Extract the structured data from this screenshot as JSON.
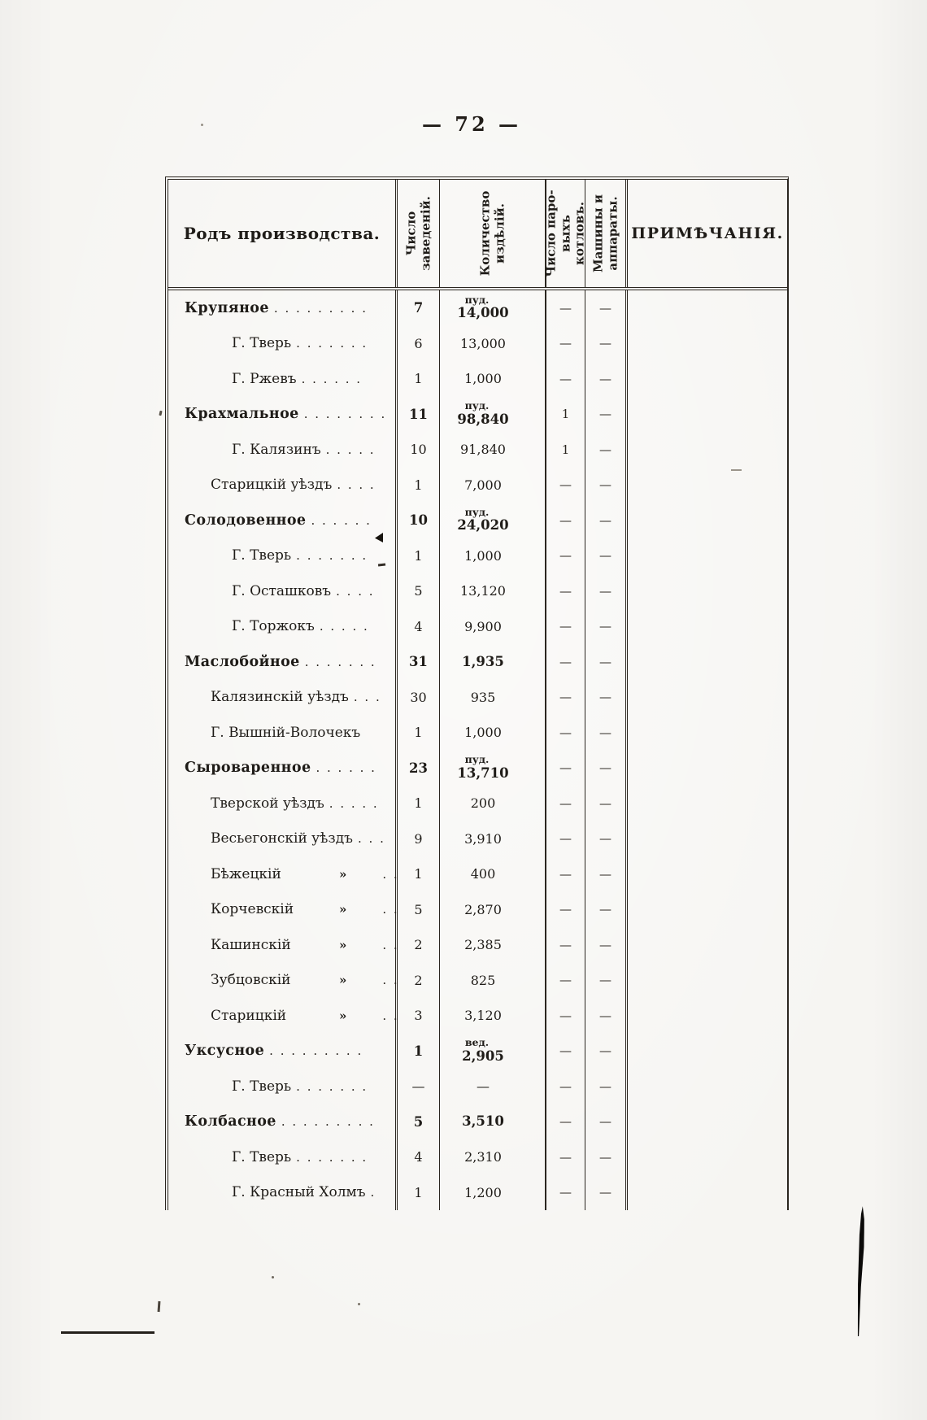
{
  "page": {
    "number": "— 72 —"
  },
  "colors": {
    "paper": "#f6f5f2",
    "ink": "#1f1c18",
    "rule": "#2b2620"
  },
  "table": {
    "header": {
      "col1": "Родъ производства.",
      "col2": "Число\nзаведеній.",
      "col3": "Количество\nиздѣлій.",
      "col4": "Число паро-\nвыхъ котловъ.",
      "col5": "Машины и\nаппараты.",
      "col6": "ПРИМѢЧАНІЯ."
    },
    "rows": [
      {
        "name": "Крупяное",
        "dots": ". . . . . . . . .",
        "indent": 0,
        "bold": true,
        "unit": "пуд.",
        "count": "7",
        "qty": "14,000",
        "boilers": "—",
        "machines": "—",
        "note": ""
      },
      {
        "name": "Г. Тверь",
        "dots": ". . . . . . .",
        "indent": 2,
        "bold": false,
        "unit": "",
        "count": "6",
        "qty": "13,000",
        "boilers": "—",
        "machines": "—",
        "note": ""
      },
      {
        "name": "Г. Ржевъ",
        "dots": " . . . . . .",
        "indent": 2,
        "bold": false,
        "unit": "",
        "count": "1",
        "qty": "1,000",
        "boilers": "—",
        "machines": "—",
        "note": ""
      },
      {
        "name": "Крахмальное",
        "dots": ". . . . . . . .",
        "indent": 0,
        "bold": true,
        "unit": "пуд.",
        "count": "11",
        "qty": "98,840",
        "boilers": "1",
        "machines": "—",
        "note": ""
      },
      {
        "name": "Г. Калязинъ",
        "dots": ". . . . .",
        "indent": 2,
        "bold": false,
        "unit": "",
        "count": "10",
        "qty": "91,840",
        "boilers": "1",
        "machines": "—",
        "note": ""
      },
      {
        "name": "Старицкій уѣздъ",
        "dots": " . . . .",
        "indent": 1,
        "bold": false,
        "unit": "",
        "count": "1",
        "qty": "7,000",
        "boilers": "—",
        "machines": "—",
        "note": ""
      },
      {
        "name": "Солодовенное",
        "dots": " . . . . . .",
        "indent": 0,
        "bold": true,
        "unit": "пуд.",
        "count": "10",
        "qty": "24,020",
        "boilers": "—",
        "machines": "—",
        "note": ""
      },
      {
        "name": "Г. Тверь",
        "dots": ". . . . . . .",
        "indent": 2,
        "bold": false,
        "unit": "",
        "count": "1",
        "qty": "1,000",
        "boilers": "—",
        "machines": "—",
        "note": ""
      },
      {
        "name": "Г. Осташковъ",
        "dots": " . . . .",
        "indent": 2,
        "bold": false,
        "unit": "",
        "count": "5",
        "qty": "13,120",
        "boilers": "—",
        "machines": "—",
        "note": ""
      },
      {
        "name": "Г. Торжокъ",
        "dots": " . . . . .",
        "indent": 2,
        "bold": false,
        "unit": "",
        "count": "4",
        "qty": "9,900",
        "boilers": "—",
        "machines": "—",
        "note": ""
      },
      {
        "name": "Маслобойное",
        "dots": ". . . . . . .",
        "indent": 0,
        "bold": true,
        "unit": "",
        "count": "31",
        "qty": "1,935",
        "boilers": "—",
        "machines": "—",
        "note": ""
      },
      {
        "name": "Калязинскій уѣздъ",
        "dots": ". . .",
        "indent": 1,
        "bold": false,
        "unit": "",
        "count": "30",
        "qty": "935",
        "boilers": "—",
        "machines": "—",
        "note": ""
      },
      {
        "name": "Г. Вышній-Волочекъ",
        "dots": "",
        "indent": 1,
        "bold": false,
        "unit": "",
        "count": "1",
        "qty": "1,000",
        "boilers": "—",
        "machines": "—",
        "note": ""
      },
      {
        "name": "Сыроваренное",
        "dots": " . . . . . .",
        "indent": 0,
        "bold": true,
        "unit": "пуд.",
        "count": "23",
        "qty": "13,710",
        "boilers": "—",
        "machines": "—",
        "note": ""
      },
      {
        "name": "Тверской уѣздъ",
        "dots": ". . . . .",
        "indent": 1,
        "bold": false,
        "unit": "",
        "count": "1",
        "qty": "200",
        "boilers": "—",
        "machines": "—",
        "note": ""
      },
      {
        "name": "Весьегонскій уѣздъ",
        "dots": ". . .",
        "indent": 1,
        "bold": false,
        "unit": "",
        "count": "9",
        "qty": "3,910",
        "boilers": "—",
        "machines": "—",
        "note": ""
      },
      {
        "name": "Бѣжецкій",
        "ditto": "»",
        "dots": ". .",
        "indent": 1,
        "bold": false,
        "unit": "",
        "count": "1",
        "qty": "400",
        "boilers": "—",
        "machines": "—",
        "note": ""
      },
      {
        "name": "Корчевскій",
        "ditto": "»",
        "dots": ". .",
        "indent": 1,
        "bold": false,
        "unit": "",
        "count": "5",
        "qty": "2,870",
        "boilers": "—",
        "machines": "—",
        "note": ""
      },
      {
        "name": "Кашинскій",
        "ditto": "»",
        "dots": ". .",
        "indent": 1,
        "bold": false,
        "unit": "",
        "count": "2",
        "qty": "2,385",
        "boilers": "—",
        "machines": "—",
        "note": ""
      },
      {
        "name": "Зубцовскій",
        "ditto": "»",
        "dots": ". .",
        "indent": 1,
        "bold": false,
        "unit": "",
        "count": "2",
        "qty": "825",
        "boilers": "—",
        "machines": "—",
        "note": ""
      },
      {
        "name": "Старицкій",
        "ditto": "»",
        "dots": ". .",
        "indent": 1,
        "bold": false,
        "unit": "",
        "count": "3",
        "qty": "3,120",
        "boilers": "—",
        "machines": "—",
        "note": ""
      },
      {
        "name": "Уксусное",
        "dots": " . . . . . . . . .",
        "indent": 0,
        "bold": true,
        "unit": "вед.",
        "count": "1",
        "qty": "2,905",
        "boilers": "—",
        "machines": "—",
        "note": ""
      },
      {
        "name": "Г. Тверь",
        "dots": ". . . . . . .",
        "indent": 2,
        "bold": false,
        "unit": "",
        "count": "—",
        "qty": "—",
        "boilers": "—",
        "machines": "—",
        "note": ""
      },
      {
        "name": "Колбасное",
        "dots": ". . . . . . . . .",
        "indent": 0,
        "bold": true,
        "unit": "",
        "count": "5",
        "qty": "3,510",
        "boilers": "—",
        "machines": "—",
        "note": ""
      },
      {
        "name": "Г. Тверь",
        "dots": ". . . . . . .",
        "indent": 2,
        "bold": false,
        "unit": "",
        "count": "4",
        "qty": "2,310",
        "boilers": "—",
        "machines": "—",
        "note": ""
      },
      {
        "name": "Г. Красный Холмъ",
        "dots": ".",
        "indent": 2,
        "bold": false,
        "unit": "",
        "count": "1",
        "qty": "1,200",
        "boilers": "—",
        "machines": "—",
        "note": ""
      }
    ]
  }
}
